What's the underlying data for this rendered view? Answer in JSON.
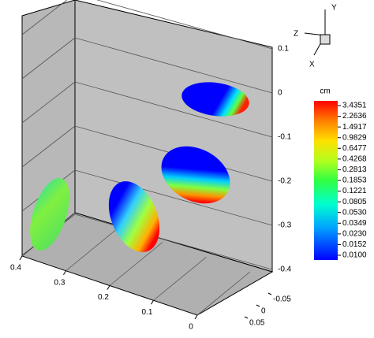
{
  "chart_data": {
    "type": "surface3d",
    "triad": {
      "y": "Y",
      "z": "Z",
      "x": "X"
    },
    "ylim": [
      -0.4,
      0.1
    ],
    "yticks": [
      0.1,
      0,
      -0.1,
      -0.2,
      -0.3,
      -0.4
    ],
    "zlim": [
      0,
      0.4
    ],
    "zticks": [
      0.4,
      0.3,
      0.2,
      0.1,
      0
    ],
    "xlim": [
      -0.05,
      0.05
    ],
    "xticks": [
      -0.05,
      0,
      0.05
    ],
    "colorbar": {
      "title": "cm",
      "ticks": [
        {
          "value": 3.4351,
          "label": "3.4351"
        },
        {
          "value": 2.2636,
          "label": "2.2636"
        },
        {
          "value": 1.4917,
          "label": "1.4917"
        },
        {
          "value": 0.9829,
          "label": "0.9829"
        },
        {
          "value": 0.6477,
          "label": "0.6477"
        },
        {
          "value": 0.4268,
          "label": "0.4268"
        },
        {
          "value": 0.2813,
          "label": "0.2813"
        },
        {
          "value": 0.1853,
          "label": "0.1853"
        },
        {
          "value": 0.1221,
          "label": "0.1221"
        },
        {
          "value": 0.0805,
          "label": "0.0805"
        },
        {
          "value": 0.053,
          "label": "0.0530"
        },
        {
          "value": 0.0349,
          "label": "0.0349"
        },
        {
          "value": 0.023,
          "label": "0.0230"
        },
        {
          "value": 0.0152,
          "label": "0.0152"
        },
        {
          "value": 0.01,
          "label": "0.0100"
        }
      ]
    }
  }
}
